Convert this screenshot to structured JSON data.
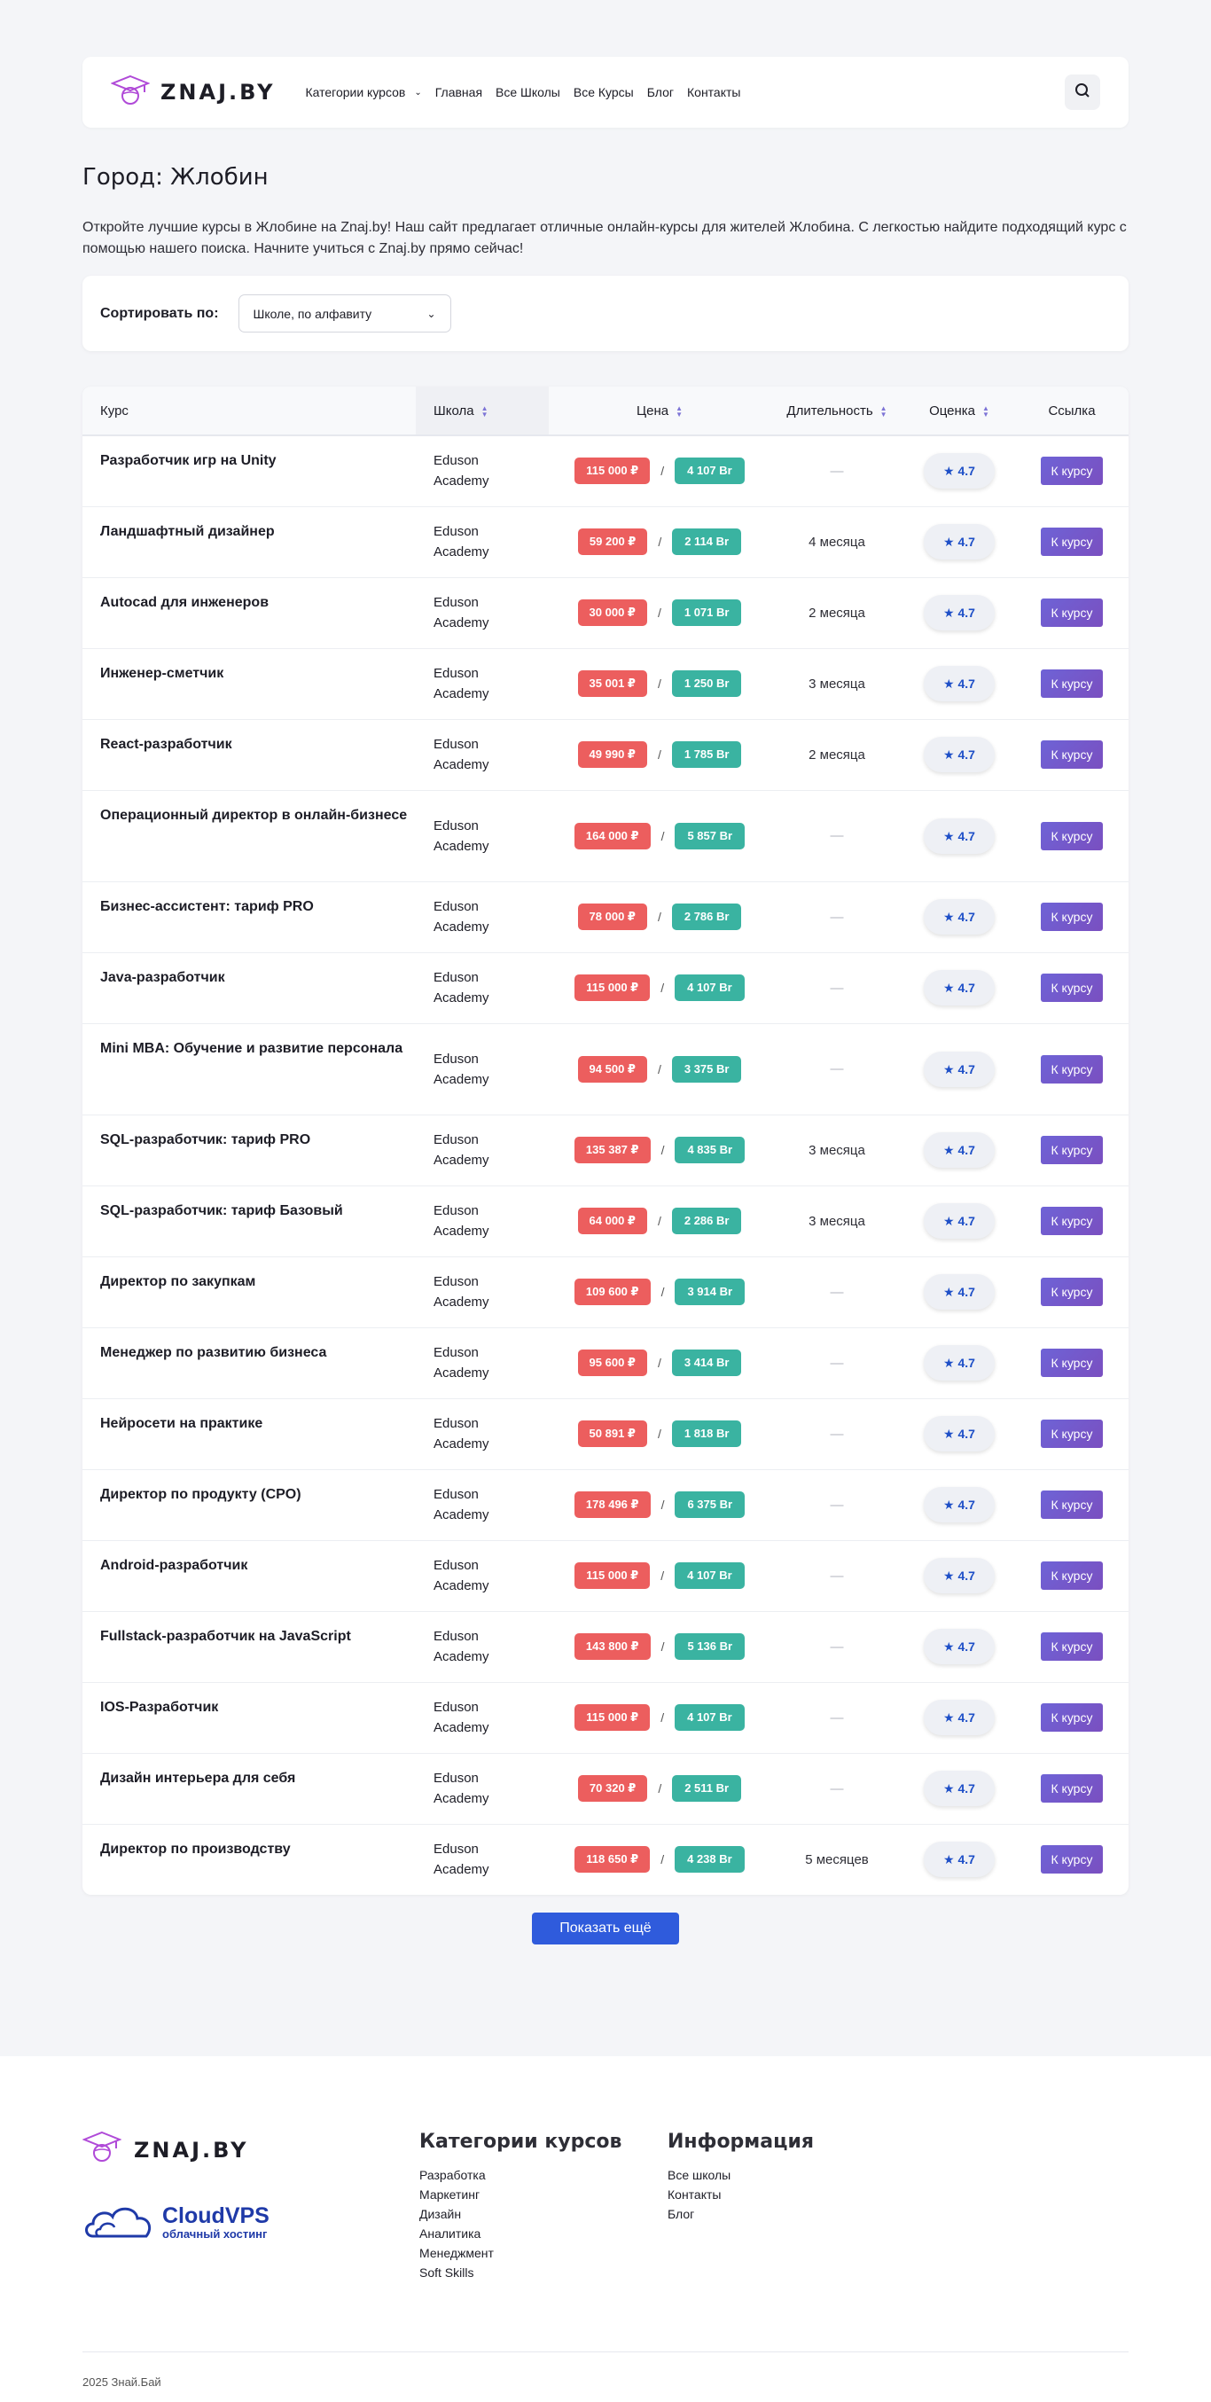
{
  "header": {
    "logo_text": "ZNAJ.BY",
    "nav": [
      {
        "label": "Категории курсов",
        "dropdown": true
      },
      {
        "label": "Главная"
      },
      {
        "label": "Все Школы"
      },
      {
        "label": "Все Курсы"
      },
      {
        "label": "Блог"
      },
      {
        "label": "Контакты"
      }
    ]
  },
  "page": {
    "title": "Город: Жлобин",
    "intro": "Откройте лучшие курсы в Жлобине на Znaj.by! Наш сайт предлагает отличные онлайн-курсы для жителей Жлобина. С легкостью найдите подходящий курс с помощью нашего поиска. Начните учиться с Znaj.by прямо сейчас!"
  },
  "sort": {
    "label": "Сортировать по:",
    "selected": "Школе, по алфавиту"
  },
  "table": {
    "headers": {
      "course": "Курс",
      "school": "Школа",
      "price": "Цена",
      "duration": "Длительность",
      "rating": "Оценка",
      "link": "Ссылка"
    },
    "price_separator": "/",
    "empty_duration": "—",
    "rows": [
      {
        "course": "Разработчик игр на Unity",
        "school": "Eduson Academy",
        "rub": "115 000 ₽",
        "byn": "4 107 Br",
        "duration": "",
        "rating": "★ 4.7",
        "link": "К курсу"
      },
      {
        "course": "Ландшафтный дизайнер",
        "school": "Eduson Academy",
        "rub": "59 200 ₽",
        "byn": "2 114 Br",
        "duration": "4 месяца",
        "rating": "★ 4.7",
        "link": "К курсу"
      },
      {
        "course": "Autocad для инженеров",
        "school": "Eduson Academy",
        "rub": "30 000 ₽",
        "byn": "1 071 Br",
        "duration": "2 месяца",
        "rating": "★ 4.7",
        "link": "К курсу"
      },
      {
        "course": "Инженер-сметчик",
        "school": "Eduson Academy",
        "rub": "35 001 ₽",
        "byn": "1 250 Br",
        "duration": "3 месяца",
        "rating": "★ 4.7",
        "link": "К курсу"
      },
      {
        "course": "React-разработчик",
        "school": "Eduson Academy",
        "rub": "49 990 ₽",
        "byn": "1 785 Br",
        "duration": "2 месяца",
        "rating": "★ 4.7",
        "link": "К курсу"
      },
      {
        "course": "Операционный директор в онлайн-бизнесе",
        "school": "Eduson Academy",
        "rub": "164 000 ₽",
        "byn": "5 857 Br",
        "duration": "",
        "rating": "★ 4.7",
        "link": "К курсу"
      },
      {
        "course": "Бизнес-ассистент: тариф PRO",
        "school": "Eduson Academy",
        "rub": "78 000 ₽",
        "byn": "2 786 Br",
        "duration": "",
        "rating": "★ 4.7",
        "link": "К курсу"
      },
      {
        "course": "Java-разработчик",
        "school": "Eduson Academy",
        "rub": "115 000 ₽",
        "byn": "4 107 Br",
        "duration": "",
        "rating": "★ 4.7",
        "link": "К курсу"
      },
      {
        "course": "Mini MBA: Обучение и развитие персонала",
        "school": "Eduson Academy",
        "rub": "94 500 ₽",
        "byn": "3 375 Br",
        "duration": "",
        "rating": "★ 4.7",
        "link": "К курсу"
      },
      {
        "course": "SQL-разработчик: тариф PRO",
        "school": "Eduson Academy",
        "rub": "135 387 ₽",
        "byn": "4 835 Br",
        "duration": "3 месяца",
        "rating": "★ 4.7",
        "link": "К курсу"
      },
      {
        "course": "SQL-разработчик: тариф Базовый",
        "school": "Eduson Academy",
        "rub": "64 000 ₽",
        "byn": "2 286 Br",
        "duration": "3 месяца",
        "rating": "★ 4.7",
        "link": "К курсу"
      },
      {
        "course": "Директор по закупкам",
        "school": "Eduson Academy",
        "rub": "109 600 ₽",
        "byn": "3 914 Br",
        "duration": "",
        "rating": "★ 4.7",
        "link": "К курсу"
      },
      {
        "course": "Менеджер по развитию бизнеса",
        "school": "Eduson Academy",
        "rub": "95 600 ₽",
        "byn": "3 414 Br",
        "duration": "",
        "rating": "★ 4.7",
        "link": "К курсу"
      },
      {
        "course": "Нейросети на практике",
        "school": "Eduson Academy",
        "rub": "50 891 ₽",
        "byn": "1 818 Br",
        "duration": "",
        "rating": "★ 4.7",
        "link": "К курсу"
      },
      {
        "course": "Директор по продукту (CPO)",
        "school": "Eduson Academy",
        "rub": "178 496 ₽",
        "byn": "6 375 Br",
        "duration": "",
        "rating": "★ 4.7",
        "link": "К курсу"
      },
      {
        "course": "Android-разработчик",
        "school": "Eduson Academy",
        "rub": "115 000 ₽",
        "byn": "4 107 Br",
        "duration": "",
        "rating": "★ 4.7",
        "link": "К курсу"
      },
      {
        "course": "Fullstack-разработчик на JavaScript",
        "school": "Eduson Academy",
        "rub": "143 800 ₽",
        "byn": "5 136 Br",
        "duration": "",
        "rating": "★ 4.7",
        "link": "К курсу"
      },
      {
        "course": "IOS-Разработчик",
        "school": "Eduson Academy",
        "rub": "115 000 ₽",
        "byn": "4 107 Br",
        "duration": "",
        "rating": "★ 4.7",
        "link": "К курсу"
      },
      {
        "course": "Дизайн интерьера для себя",
        "school": "Eduson Academy",
        "rub": "70 320 ₽",
        "byn": "2 511 Br",
        "duration": "",
        "rating": "★ 4.7",
        "link": "К курсу"
      },
      {
        "course": "Директор по производству",
        "school": "Eduson Academy",
        "rub": "118 650 ₽",
        "byn": "4 238 Br",
        "duration": "5 месяцев",
        "rating": "★ 4.7",
        "link": "К курсу"
      }
    ]
  },
  "show_more": "Показать ещё",
  "footer": {
    "logo_text": "ZNAJ.BY",
    "partner_title": "CloudVPS",
    "partner_sub": "облачный хостинг",
    "categories_title": "Категории курсов",
    "categories": [
      "Разработка",
      "Маркетинг",
      "Дизайн",
      "Аналитика",
      "Менеджмент",
      "Soft Skills"
    ],
    "info_title": "Информация",
    "info_links": [
      "Все школы",
      "Контакты",
      "Блог"
    ],
    "copyright": "2025 Знай.Бай"
  },
  "colors": {
    "accent": "#2f5bdc",
    "price_rub": "#ec5e5e",
    "price_byn": "#3ab3a1",
    "link_button": "#6e63d6",
    "logo": "#b04ad8"
  }
}
